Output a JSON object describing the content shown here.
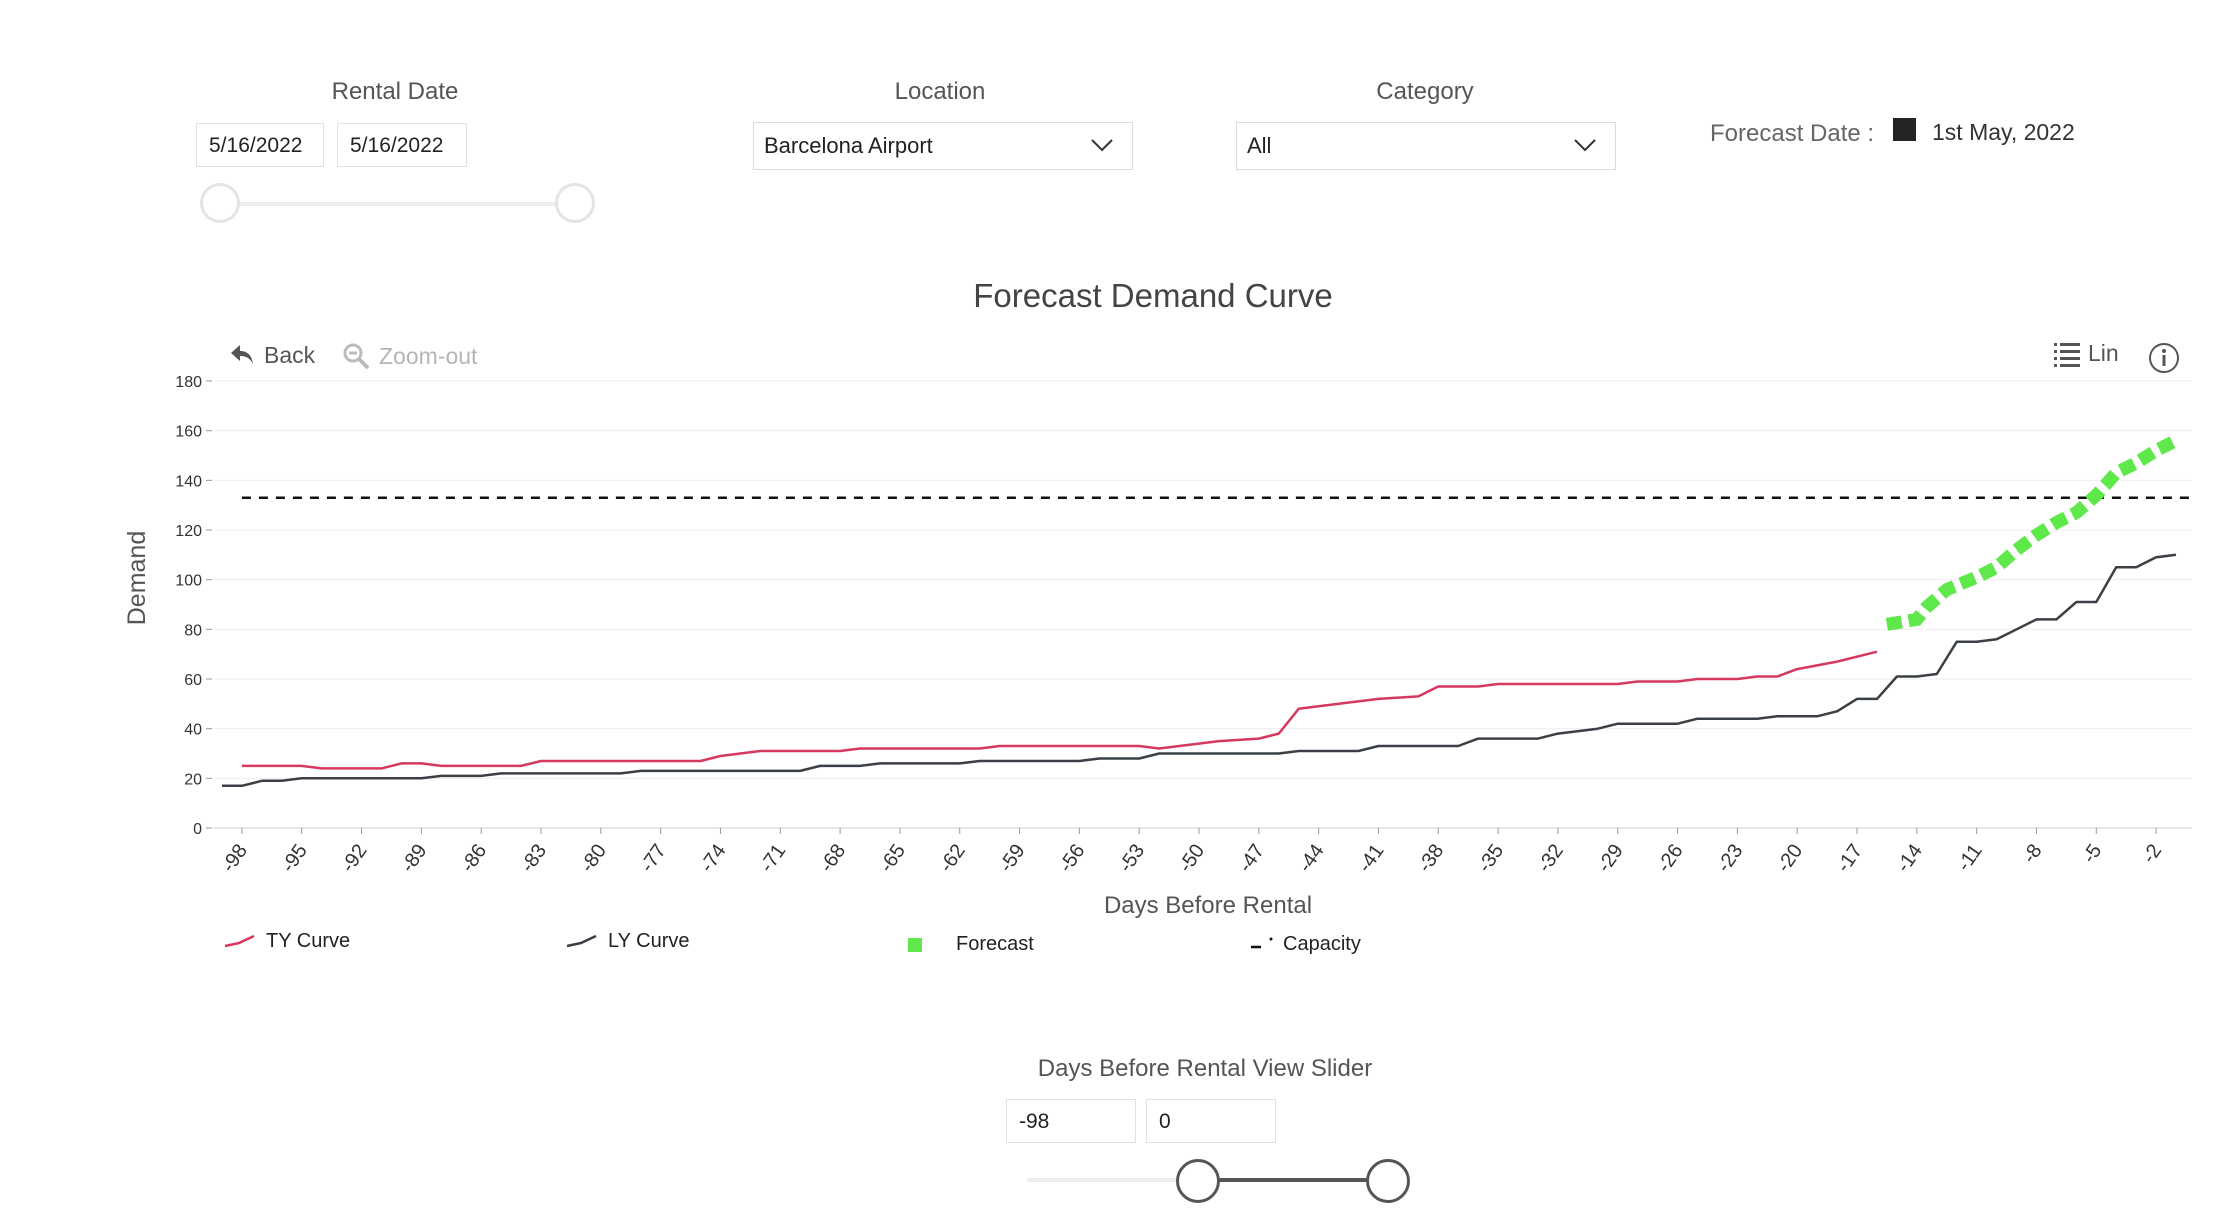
{
  "filters": {
    "rental_date": {
      "title": "Rental Date",
      "start": "5/16/2022",
      "end": "5/16/2022"
    },
    "location": {
      "title": "Location",
      "value": "Barcelona Airport"
    },
    "category": {
      "title": "Category",
      "value": "All"
    },
    "forecast_date": {
      "label": "Forecast Date :",
      "value": "1st May, 2022"
    }
  },
  "toolbar": {
    "back": "Back",
    "zoom_out": "Zoom-out",
    "lin": "Lin"
  },
  "slider": {
    "title": "Days Before Rental View Slider",
    "min_value": "-98",
    "max_value": "0"
  },
  "colors": {
    "ty": "#d6395e",
    "ly": "#3a4045",
    "forecast": "#5ee84a",
    "capacity": "#111111"
  },
  "chart_data": {
    "type": "line",
    "title": "Forecast Demand Curve",
    "xlabel": "Days Before Rental",
    "ylabel": "Demand",
    "xlim": [
      -98,
      0
    ],
    "ylim": [
      0,
      180
    ],
    "yticks": [
      0,
      20,
      40,
      60,
      80,
      100,
      120,
      140,
      160,
      180
    ],
    "xticks": [
      -98,
      -95,
      -92,
      -89,
      -86,
      -83,
      -80,
      -77,
      -74,
      -71,
      -68,
      -65,
      -62,
      -59,
      -56,
      -53,
      -50,
      -47,
      -44,
      -41,
      -38,
      -35,
      -32,
      -29,
      -26,
      -23,
      -20,
      -17,
      -14,
      -11,
      -8,
      -5,
      -2
    ],
    "grid": true,
    "legend_position": "bottom",
    "series": [
      {
        "name": "TY Curve",
        "x": [
          -98,
          -95,
          -94,
          -91,
          -90,
          -89,
          -88,
          -84,
          -83,
          -79,
          -78,
          -75,
          -74,
          -73,
          -72,
          -68,
          -67,
          -61,
          -60,
          -53,
          -52,
          -49,
          -47,
          -46,
          -45,
          -44,
          -41,
          -39,
          -38,
          -36,
          -35,
          -29,
          -28,
          -26,
          -25,
          -23,
          -22,
          -21,
          -20,
          -18,
          -16
        ],
        "y": [
          25,
          25,
          24,
          24,
          26,
          26,
          25,
          25,
          27,
          27,
          27,
          27,
          29,
          30,
          31,
          31,
          32,
          32,
          33,
          33,
          32,
          35,
          36,
          38,
          48,
          49,
          52,
          53,
          57,
          57,
          58,
          58,
          59,
          59,
          60,
          60,
          61,
          61,
          64,
          67,
          71
        ]
      },
      {
        "name": "LY Curve",
        "x": [
          -99,
          -98,
          -97,
          -96,
          -95,
          -89,
          -88,
          -86,
          -85,
          -79,
          -78,
          -70,
          -69,
          -67,
          -66,
          -62,
          -61,
          -56,
          -55,
          -53,
          -52,
          -46,
          -45,
          -42,
          -41,
          -37,
          -36,
          -33,
          -32,
          -30,
          -29,
          -26,
          -25,
          -22,
          -21,
          -19,
          -18,
          -17,
          -16,
          -15,
          -14,
          -13,
          -12,
          -11,
          -10,
          -8,
          -7,
          -6,
          -5,
          -4,
          -3,
          -2,
          -1
        ],
        "y": [
          17,
          17,
          19,
          19,
          20,
          20,
          21,
          21,
          22,
          22,
          23,
          23,
          25,
          25,
          26,
          26,
          27,
          27,
          28,
          28,
          30,
          30,
          31,
          31,
          33,
          33,
          36,
          36,
          38,
          40,
          42,
          42,
          44,
          44,
          45,
          45,
          47,
          52,
          52,
          61,
          61,
          62,
          75,
          75,
          76,
          84,
          84,
          91,
          91,
          105,
          105,
          109,
          110
        ]
      },
      {
        "name": "Forecast",
        "x": [
          -15.5,
          -14,
          -13.5,
          -12.5,
          -11,
          -10,
          -9,
          -8,
          -7,
          -6,
          -5,
          -4,
          -3,
          -2,
          -1
        ],
        "y": [
          82,
          84,
          89,
          96,
          101,
          105,
          112,
          118,
          123,
          127,
          134,
          143,
          147,
          152,
          156
        ]
      },
      {
        "name": "Capacity",
        "x": [
          -98,
          0
        ],
        "y": [
          133,
          133
        ]
      }
    ]
  }
}
